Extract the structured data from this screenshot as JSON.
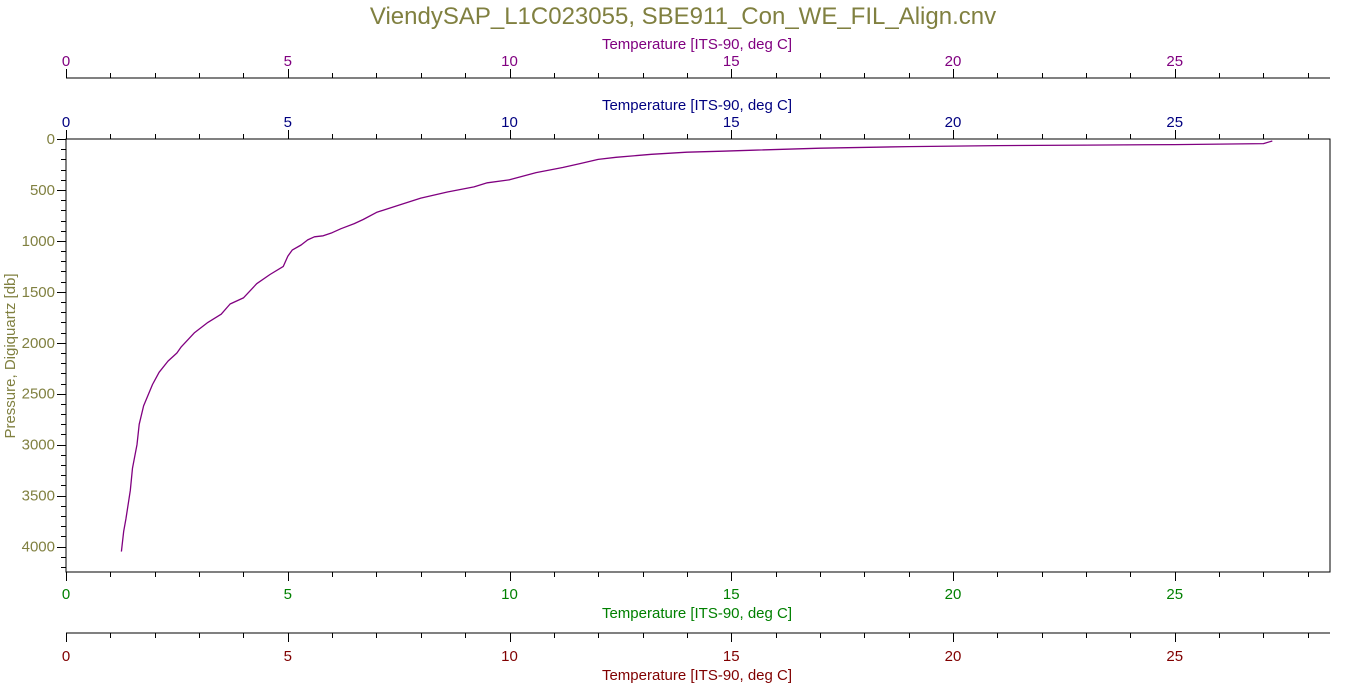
{
  "chart_data": {
    "type": "line",
    "title": "ViendySAP_L1C023055, SBE911_Con_WE_FIL_Align.cnv",
    "ylabel": "Pressure, Digiquartz [db]",
    "ylim": [
      0,
      4250
    ],
    "y_inverted": true,
    "y_ticks": [
      0,
      500,
      1000,
      1500,
      2000,
      2500,
      3000,
      3500,
      4000
    ],
    "x_axes": [
      {
        "position": "top-outer",
        "label": "Temperature [ITS-90, deg C]",
        "color": "#800080",
        "xlim": [
          0,
          28.5
        ],
        "ticks": [
          0,
          5,
          10,
          15,
          20,
          25
        ]
      },
      {
        "position": "top-inner",
        "label": "Temperature [ITS-90, deg C]",
        "color": "#000080",
        "xlim": [
          0,
          28.5
        ],
        "ticks": [
          0,
          5,
          10,
          15,
          20,
          25
        ]
      },
      {
        "position": "bottom-inner",
        "label": "Temperature [ITS-90, deg C]",
        "color": "#008000",
        "xlim": [
          0,
          28.5
        ],
        "ticks": [
          0,
          5,
          10,
          15,
          20,
          25
        ]
      },
      {
        "position": "bottom-outer",
        "label": "Temperature [ITS-90, deg C]",
        "color": "#800000",
        "xlim": [
          0,
          28.5
        ],
        "ticks": [
          0,
          5,
          10,
          15,
          20,
          25
        ]
      }
    ],
    "colors": {
      "title": "#808040",
      "y_axis": "#808040",
      "series": "#800080",
      "frame": "#000000"
    },
    "grid": false,
    "series": [
      {
        "x": [
          27.2,
          27.0,
          25.0,
          23.0,
          21.0,
          19.0,
          17.0,
          15.5,
          14.8,
          14.0,
          13.2,
          12.4,
          12.0,
          11.6,
          11.2,
          10.6,
          10.0,
          9.5,
          9.2,
          8.6,
          8.0,
          7.5,
          7.0,
          6.7,
          6.5,
          6.2,
          6.0,
          5.8,
          5.6,
          5.45,
          5.3,
          5.1,
          5.0,
          4.9,
          4.6,
          4.3,
          4.0,
          3.7,
          3.5,
          3.2,
          2.9,
          2.6,
          2.5,
          2.3,
          2.1,
          1.95,
          1.75,
          1.65,
          1.6,
          1.5,
          1.45,
          1.35,
          1.3,
          1.25
        ],
        "y": [
          20,
          45,
          55,
          60,
          65,
          75,
          90,
          110,
          120,
          130,
          150,
          180,
          200,
          240,
          280,
          330,
          400,
          430,
          470,
          520,
          580,
          650,
          720,
          790,
          830,
          880,
          920,
          950,
          960,
          990,
          1040,
          1090,
          1150,
          1250,
          1330,
          1420,
          1560,
          1620,
          1720,
          1800,
          1900,
          2040,
          2100,
          2180,
          2290,
          2410,
          2620,
          2800,
          3000,
          3230,
          3450,
          3730,
          3850,
          4050
        ]
      }
    ]
  }
}
